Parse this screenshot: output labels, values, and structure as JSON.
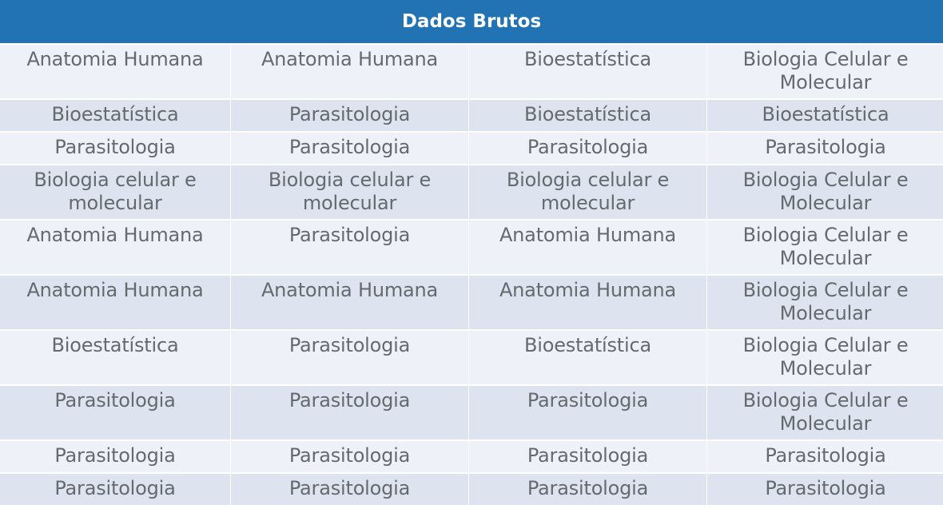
{
  "table": {
    "title": "Dados Brutos",
    "rows": [
      [
        "Anatomia Humana",
        "Anatomia Humana",
        "Bioestatística",
        "Biologia Celular e Molecular"
      ],
      [
        "Bioestatística",
        "Parasitologia",
        "Bioestatística",
        "Bioestatística"
      ],
      [
        "Parasitologia",
        "Parasitologia",
        "Parasitologia",
        "Parasitologia"
      ],
      [
        "Biologia celular e molecular",
        "Biologia celular e molecular",
        "Biologia celular e molecular",
        "Biologia Celular e Molecular"
      ],
      [
        "Anatomia Humana",
        "Parasitologia",
        "Anatomia Humana",
        "Biologia Celular e Molecular"
      ],
      [
        "Anatomia Humana",
        "Anatomia Humana",
        "Anatomia Humana",
        "Biologia Celular e Molecular"
      ],
      [
        "Bioestatística",
        "Parasitologia",
        "Bioestatística",
        "Biologia Celular e Molecular"
      ],
      [
        "Parasitologia",
        "Parasitologia",
        "Parasitologia",
        "Biologia Celular e Molecular"
      ],
      [
        "Parasitologia",
        "Parasitologia",
        "Parasitologia",
        "Parasitologia"
      ],
      [
        "Parasitologia",
        "Parasitologia",
        "Parasitologia",
        "Parasitologia"
      ]
    ]
  },
  "colors": {
    "header_bg": "#2273b4",
    "header_text": "#ffffff",
    "row_light": "#eef1f8",
    "row_dark": "#dde3ef",
    "cell_text": "#666a6e"
  }
}
